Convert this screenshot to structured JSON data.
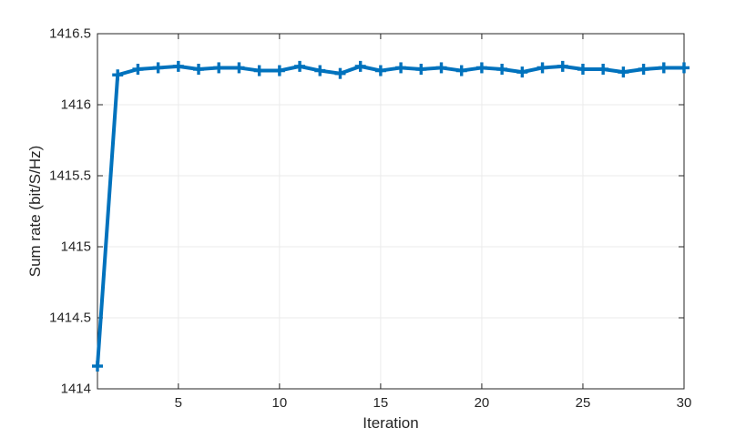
{
  "chart_data": {
    "type": "line",
    "title": "",
    "xlabel": "Iteration",
    "ylabel": "Sum rate (bit/S/Hz)",
    "x": [
      1,
      2,
      3,
      4,
      5,
      6,
      7,
      8,
      9,
      10,
      11,
      12,
      13,
      14,
      15,
      16,
      17,
      18,
      19,
      20,
      21,
      22,
      23,
      24,
      25,
      26,
      27,
      28,
      29,
      30
    ],
    "y": [
      1414.16,
      1416.21,
      1416.25,
      1416.26,
      1416.27,
      1416.25,
      1416.26,
      1416.26,
      1416.24,
      1416.24,
      1416.27,
      1416.24,
      1416.22,
      1416.27,
      1416.24,
      1416.26,
      1416.25,
      1416.26,
      1416.24,
      1416.26,
      1416.25,
      1416.23,
      1416.26,
      1416.27,
      1416.25,
      1416.25,
      1416.23,
      1416.25,
      1416.26,
      1416.26
    ],
    "xlim": [
      1,
      30
    ],
    "ylim": [
      1414,
      1416.5
    ],
    "xticks": [
      5,
      10,
      15,
      20,
      25,
      30
    ],
    "yticks": [
      1414,
      1414.5,
      1415,
      1415.5,
      1416,
      1416.5
    ],
    "grid": true,
    "legend": "none",
    "marker": "plus",
    "line_color": "#0072BD",
    "axis_color": "#262626",
    "grid_color": "#EBEBEB",
    "background_color": "#FFFFFF"
  }
}
